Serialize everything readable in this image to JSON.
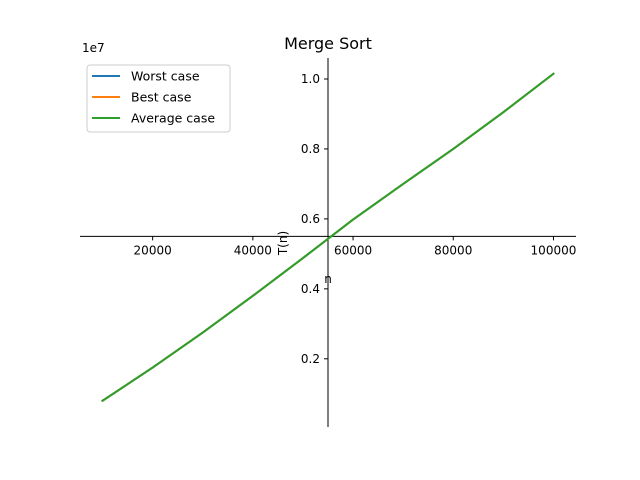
{
  "chart_data": {
    "type": "line",
    "title": "Merge Sort",
    "xlabel": "n",
    "ylabel": "T(n)",
    "y_offset_text": "1e7",
    "y_scale": 10000000,
    "xlim": [
      5500,
      104500
    ],
    "ylim": [
      50000,
      10600000
    ],
    "x_ticks": [
      20000,
      40000,
      60000,
      80000,
      100000
    ],
    "x_tick_labels": [
      "20000",
      "40000",
      "60000",
      "80000",
      "100000"
    ],
    "y_ticks": [
      2000000,
      4000000,
      6000000,
      8000000,
      10000000
    ],
    "y_tick_labels": [
      "0.2",
      "0.4",
      "0.6",
      "0.8",
      "1.0"
    ],
    "grid": false,
    "legend_position": "upper-left",
    "x": [
      10000,
      20000,
      30000,
      40000,
      50000,
      60000,
      70000,
      80000,
      90000,
      100000
    ],
    "series": [
      {
        "name": "Worst case",
        "color": "#1f77b4",
        "values": [
          800000,
          1750000,
          2750000,
          3800000,
          4880000,
          5980000,
          7000000,
          8000000,
          9050000,
          10150000
        ]
      },
      {
        "name": "Best case",
        "color": "#ff7f0e",
        "values": [
          800000,
          1750000,
          2750000,
          3800000,
          4880000,
          5980000,
          7000000,
          8000000,
          9050000,
          10150000
        ]
      },
      {
        "name": "Average case",
        "color": "#2ca02c",
        "values": [
          800000,
          1750000,
          2750000,
          3800000,
          4880000,
          5980000,
          7000000,
          8000000,
          9050000,
          10150000
        ]
      }
    ]
  }
}
